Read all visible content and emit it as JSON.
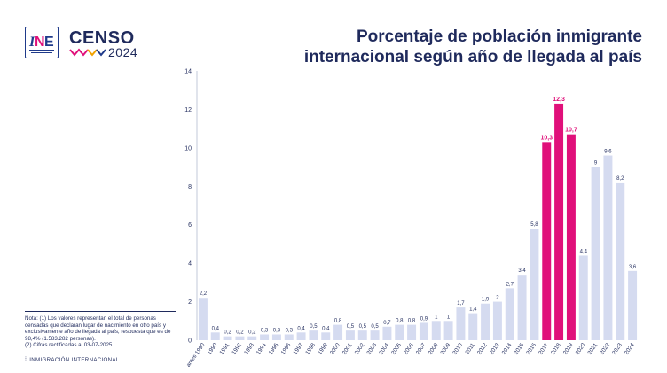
{
  "header": {
    "title_line1": "Porcentaje de población inmigrante",
    "title_line2": "internacional según año de llegada al país",
    "logo_ine_text": "INE",
    "logo_censo_word": "CENSO",
    "logo_censo_year": "2024"
  },
  "note": {
    "line1": "Nota: (1) Los valores representan el total de personas censadas que declaran lugar de nacimiento en otro país y exclusivamente año de llegada al país, respuesta que es de 98,4% (1.583.282 personas).",
    "line2": "(2) Cifras rectificadas al 03-07-2025."
  },
  "footer": {
    "label": "INMIGRACIÓN INTERNACIONAL"
  },
  "colors": {
    "bar": "#d5dbf0",
    "highlight": "#e0107a",
    "text": "#1f2a5c"
  },
  "chart_data": {
    "type": "bar",
    "categories": [
      "antes 1990",
      "1990",
      "1991",
      "1992",
      "1993",
      "1994",
      "1995",
      "1996",
      "1997",
      "1998",
      "1999",
      "2000",
      "2001",
      "2002",
      "2003",
      "2004",
      "2005",
      "2006",
      "2007",
      "2008",
      "2009",
      "2010",
      "2011",
      "2012",
      "2013",
      "2014",
      "2015",
      "2016",
      "2017",
      "2018",
      "2019",
      "2020",
      "2021",
      "2022",
      "2023",
      "2024"
    ],
    "values": [
      2.2,
      0.4,
      0.2,
      0.2,
      0.2,
      0.3,
      0.3,
      0.3,
      0.4,
      0.5,
      0.4,
      0.8,
      0.5,
      0.5,
      0.5,
      0.7,
      0.8,
      0.8,
      0.9,
      1,
      1,
      1.7,
      1.4,
      1.9,
      2,
      2.7,
      3.4,
      5.8,
      10.3,
      12.3,
      10.7,
      4.4,
      9,
      9.6,
      8.2,
      3.6
    ],
    "value_labels": [
      "2,2",
      "0,4",
      "0,2",
      "0,2",
      "0,2",
      "0,3",
      "0,3",
      "0,3",
      "0,4",
      "0,5",
      "0,4",
      "0,8",
      "0,5",
      "0,5",
      "0,5",
      "0,7",
      "0,8",
      "0,8",
      "0,9",
      "1",
      "1",
      "1,7",
      "1,4",
      "1,9",
      "2",
      "2,7",
      "3,4",
      "5,8",
      "10,3",
      "12,3",
      "10,7",
      "4,4",
      "9",
      "9,6",
      "8,2",
      "3,6"
    ],
    "highlighted": [
      "2017",
      "2018",
      "2019"
    ],
    "y_ticks": [
      "0",
      "2",
      "4",
      "6",
      "8",
      "10",
      "12",
      "14"
    ],
    "ylim": [
      0,
      14
    ],
    "grid": false,
    "title": "Porcentaje de población inmigrante internacional según año de llegada al país"
  }
}
